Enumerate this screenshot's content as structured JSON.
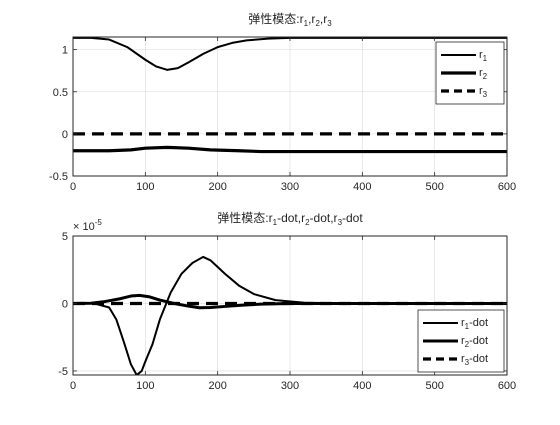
{
  "chart_data": [
    {
      "type": "line",
      "title_parts": [
        "弹性模态:r",
        "1",
        ",r",
        "2",
        ",r",
        "3"
      ],
      "xlim": [
        0,
        600
      ],
      "ylim": [
        -0.5,
        1.15
      ],
      "x_ticks": [
        0,
        100,
        200,
        300,
        400,
        500,
        600
      ],
      "y_ticks": [
        -0.5,
        0,
        0.5,
        1
      ],
      "x_tick_labels": [
        "0",
        "100",
        "200",
        "300",
        "400",
        "500",
        "600"
      ],
      "y_tick_labels": [
        "-0.5",
        "0",
        "0.5",
        "1"
      ],
      "grid": true,
      "legend_position": "top-right",
      "series": [
        {
          "name_parts": [
            "r",
            "1"
          ],
          "color": "#000000",
          "style": "solid",
          "width": 2.0,
          "x": [
            0,
            25,
            50,
            75,
            100,
            115,
            130,
            145,
            160,
            180,
            200,
            220,
            240,
            270,
            300,
            350,
            400,
            600
          ],
          "y": [
            1.14,
            1.14,
            1.12,
            1.03,
            0.88,
            0.8,
            0.76,
            0.78,
            0.85,
            0.95,
            1.03,
            1.08,
            1.11,
            1.13,
            1.14,
            1.14,
            1.14,
            1.14
          ]
        },
        {
          "name_parts": [
            "r",
            "2"
          ],
          "color": "#000000",
          "style": "solid",
          "width": 3.2,
          "x": [
            0,
            50,
            80,
            100,
            130,
            160,
            190,
            230,
            260,
            300,
            400,
            600
          ],
          "y": [
            -0.2,
            -0.2,
            -0.19,
            -0.17,
            -0.16,
            -0.17,
            -0.19,
            -0.2,
            -0.21,
            -0.21,
            -0.21,
            -0.21
          ]
        },
        {
          "name_parts": [
            "r",
            "3"
          ],
          "color": "#000000",
          "style": "dashed",
          "width": 3.2,
          "x": [
            0,
            600
          ],
          "y": [
            0,
            0
          ]
        }
      ]
    },
    {
      "type": "line",
      "title_parts": [
        "弹性模态:r",
        "1",
        "-dot,r",
        "2",
        "-dot,r",
        "3",
        "-dot"
      ],
      "exponent_parts": [
        "× 10",
        "-5"
      ],
      "xlim": [
        0,
        600
      ],
      "ylim": [
        -5.3,
        5
      ],
      "x_ticks": [
        0,
        100,
        200,
        300,
        400,
        500,
        600
      ],
      "y_ticks": [
        -5,
        0,
        5
      ],
      "x_tick_labels": [
        "0",
        "100",
        "200",
        "300",
        "400",
        "500",
        "600"
      ],
      "y_tick_labels": [
        "-5",
        "0",
        "5"
      ],
      "grid": true,
      "legend_position": "bottom-right",
      "series": [
        {
          "name_parts": [
            "r",
            "1",
            "-dot"
          ],
          "color": "#000000",
          "style": "solid",
          "width": 2.0,
          "x": [
            0,
            30,
            50,
            60,
            70,
            80,
            88,
            95,
            100,
            110,
            120,
            135,
            150,
            165,
            175,
            180,
            190,
            210,
            230,
            250,
            280,
            320,
            400,
            600
          ],
          "y": [
            0,
            0,
            -0.3,
            -1.2,
            -2.8,
            -4.5,
            -5.3,
            -5.0,
            -4.3,
            -3.0,
            -1.2,
            0.8,
            2.2,
            3.0,
            3.3,
            3.45,
            3.2,
            2.2,
            1.3,
            0.7,
            0.25,
            0.05,
            0,
            0
          ]
        },
        {
          "name_parts": [
            "r",
            "2",
            "-dot"
          ],
          "color": "#000000",
          "style": "solid",
          "width": 3.0,
          "x": [
            0,
            25,
            45,
            65,
            80,
            92,
            105,
            120,
            140,
            160,
            175,
            190,
            210,
            235,
            260,
            300,
            400,
            600
          ],
          "y": [
            0,
            0.02,
            0.15,
            0.35,
            0.55,
            0.6,
            0.5,
            0.25,
            0,
            -0.2,
            -0.32,
            -0.3,
            -0.22,
            -0.12,
            -0.05,
            0,
            0,
            0
          ]
        },
        {
          "name_parts": [
            "r",
            "3",
            "-dot"
          ],
          "color": "#000000",
          "style": "dashed",
          "width": 3.2,
          "x": [
            0,
            600
          ],
          "y": [
            0,
            0
          ]
        }
      ]
    }
  ]
}
